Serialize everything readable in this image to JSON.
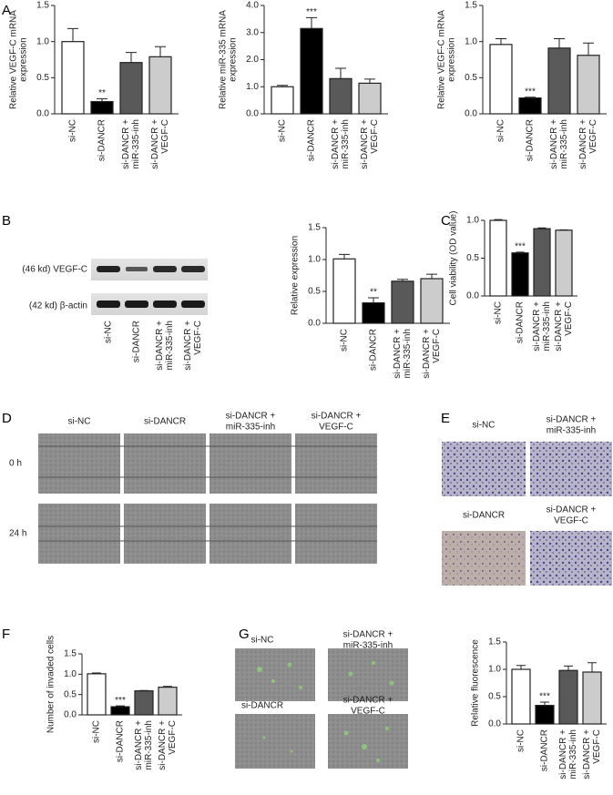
{
  "chart_data": [
    {
      "type": "bar",
      "ylabel": [
        "Relative VEGF-C mRNA",
        "expression"
      ],
      "categories": [
        [
          "si-NC"
        ],
        [
          "si-DANCR"
        ],
        [
          "si-DANCR +",
          "miR-335-inh"
        ],
        [
          "si-DANCR +",
          "VEGF-C"
        ]
      ],
      "values": [
        1.0,
        0.17,
        0.71,
        0.79
      ],
      "errors": [
        0.18,
        0.04,
        0.14,
        0.14
      ],
      "bar_labels": [
        null,
        "**",
        null,
        null
      ],
      "colors": [
        "#ffffff",
        "#000000",
        "#595959",
        "#cccccc"
      ],
      "ylim": [
        0,
        1.5
      ],
      "yticks": [
        {
          "value": 0,
          "label": "0.0"
        },
        0.5,
        {
          "value": 1,
          "label": "1.0"
        },
        1.5
      ]
    },
    {
      "type": "bar",
      "ylabel": [
        "Relative miR-335 mRNA",
        "expression"
      ],
      "categories": [
        [
          "si-NC"
        ],
        [
          "si-DANCR"
        ],
        [
          "si-DANCR +",
          "miR-335-inh"
        ],
        [
          "si-DANCR +",
          "VEGF-C"
        ]
      ],
      "values": [
        1.0,
        3.15,
        1.3,
        1.13
      ],
      "errors": [
        0.05,
        0.4,
        0.38,
        0.15
      ],
      "bar_labels": [
        null,
        "***",
        null,
        null
      ],
      "colors": [
        "#ffffff",
        "#000000",
        "#595959",
        "#cccccc"
      ],
      "ylim": [
        0,
        4
      ],
      "yticks": [
        {
          "value": 0,
          "label": "0.0"
        },
        {
          "value": 1,
          "label": "1.0"
        },
        {
          "value": 2,
          "label": "2.0"
        },
        {
          "value": 3,
          "label": "3.0"
        },
        {
          "value": 4,
          "label": "4.0"
        }
      ]
    },
    {
      "type": "bar",
      "ylabel": [
        "Relative VEGF-C mRNA",
        "expression"
      ],
      "categories": [
        [
          "si-NC"
        ],
        [
          "si-DANCR"
        ],
        [
          "si-DANCR +",
          "miR-335-inh"
        ],
        [
          "si-DANCR +",
          "VEGF-C"
        ]
      ],
      "values": [
        0.96,
        0.22,
        0.91,
        0.81
      ],
      "errors": [
        0.08,
        0.01,
        0.13,
        0.17
      ],
      "bar_labels": [
        null,
        "***",
        null,
        null
      ],
      "colors": [
        "#ffffff",
        "#000000",
        "#595959",
        "#cccccc"
      ],
      "ylim": [
        0,
        1.5
      ],
      "yticks": [
        {
          "value": 0,
          "label": "0.0"
        },
        0.5,
        {
          "value": 1,
          "label": "1.0"
        },
        1.5
      ]
    },
    {
      "type": "bar",
      "ylabel": [
        "Relative expression"
      ],
      "categories": [
        [
          "si-NC"
        ],
        [
          "si-DANCR"
        ],
        [
          "si-DANCR +",
          "miR-335-inh"
        ],
        [
          "si-DANCR +",
          "VEGF-C"
        ]
      ],
      "values": [
        1.01,
        0.32,
        0.66,
        0.7
      ],
      "errors": [
        0.07,
        0.08,
        0.03,
        0.07
      ],
      "bar_labels": [
        null,
        "**",
        null,
        null
      ],
      "colors": [
        "#ffffff",
        "#000000",
        "#595959",
        "#cccccc"
      ],
      "ylim": [
        0,
        1.5
      ],
      "yticks": [
        {
          "value": 0,
          "label": "0.0"
        },
        0.5,
        {
          "value": 1,
          "label": "1.0"
        },
        1.5
      ]
    },
    {
      "type": "bar",
      "ylabel": [
        "Cell viability (OD value)"
      ],
      "categories": [
        [
          "si-NC"
        ],
        [
          "si-DANCR"
        ],
        [
          "si-DANCR +",
          "miR-335-inh"
        ],
        [
          "si-DANCR +",
          "VEGF-C"
        ]
      ],
      "values": [
        1.0,
        0.57,
        0.89,
        0.87
      ],
      "errors": [
        0.01,
        0.01,
        0.01,
        0.005
      ],
      "bar_labels": [
        null,
        "***",
        null,
        null
      ],
      "colors": [
        "#ffffff",
        "#000000",
        "#595959",
        "#cccccc"
      ],
      "ylim": [
        0,
        1
      ],
      "yticks": [
        {
          "value": 0,
          "label": "0.0"
        },
        0.5,
        {
          "value": 1,
          "label": "1.0"
        }
      ]
    },
    {
      "type": "bar",
      "ylabel": [
        "Number of invaded cells"
      ],
      "categories": [
        [
          "si-NC"
        ],
        [
          "si-DANCR"
        ],
        [
          "si-DANCR +",
          "miR-335-inh"
        ],
        [
          "si-DANCR +",
          "VEGF-C"
        ]
      ],
      "values": [
        1.01,
        0.2,
        0.59,
        0.68
      ],
      "errors": [
        0.02,
        0.02,
        0.01,
        0.02
      ],
      "bar_labels": [
        null,
        "***",
        null,
        null
      ],
      "colors": [
        "#ffffff",
        "#000000",
        "#595959",
        "#cccccc"
      ],
      "ylim": [
        0,
        1.5
      ],
      "yticks": [
        {
          "value": 0,
          "label": "0.0"
        },
        0.5,
        {
          "value": 1,
          "label": "1.0"
        },
        1.5
      ]
    },
    {
      "type": "bar",
      "ylabel": [
        "Relative fluorescence"
      ],
      "categories": [
        [
          "si-NC"
        ],
        [
          "si-DANCR"
        ],
        [
          "si-DANCR +",
          "miR-335-inh"
        ],
        [
          "si-DANCR +",
          "VEGF-C"
        ]
      ],
      "values": [
        1.0,
        0.34,
        0.98,
        0.95
      ],
      "errors": [
        0.07,
        0.06,
        0.08,
        0.17
      ],
      "bar_labels": [
        null,
        "***",
        null,
        null
      ],
      "colors": [
        "#ffffff",
        "#000000",
        "#595959",
        "#cccccc"
      ],
      "ylim": [
        0,
        1.5
      ],
      "yticks": [
        {
          "value": 0,
          "label": "0.0"
        },
        0.5,
        {
          "value": 1,
          "label": "1.0"
        },
        1.5
      ]
    }
  ],
  "panel_labels": [
    "A",
    "B",
    "C",
    "D",
    "E",
    "F",
    "G"
  ],
  "blot": {
    "bands": [
      "(46 kd) VEGF-C",
      "(42 kd) β-actin"
    ],
    "lanes": [
      [
        "si-NC"
      ],
      [
        "si-DANCR"
      ],
      [
        "si-DANCR +",
        "miR-335-inh"
      ],
      [
        "si-DANCR +",
        "VEGF-C"
      ]
    ]
  },
  "wound": {
    "columns": [
      [
        "si-NC"
      ],
      [
        "si-DANCR"
      ],
      [
        "si-DANCR +",
        "miR-335-inh"
      ],
      [
        "si-DANCR +",
        "VEGF-C"
      ]
    ],
    "rows": [
      "0 h",
      "24 h"
    ]
  },
  "invasion": {
    "labels": [
      [
        "si-NC"
      ],
      [
        "si-DANCR +",
        "miR-335-inh"
      ],
      [
        "si-DANCR"
      ],
      [
        "si-DANCR +",
        "VEGF-C"
      ]
    ]
  },
  "fluorescence": {
    "labels": [
      [
        "si-NC"
      ],
      [
        "si-DANCR +",
        "miR-335-inh"
      ],
      [
        "si-DANCR"
      ],
      [
        "si-DANCR +",
        "VEGF-C"
      ]
    ]
  }
}
